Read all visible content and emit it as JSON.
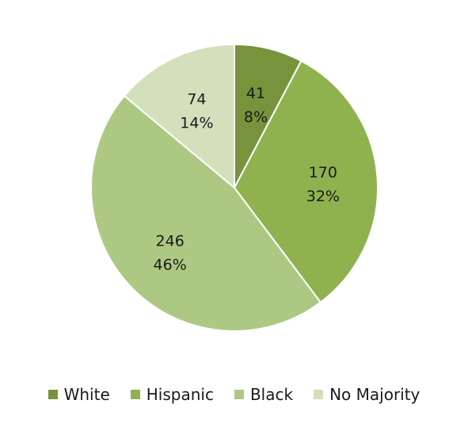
{
  "chart_data": {
    "type": "pie",
    "categories": [
      "White",
      "Hispanic",
      "Black",
      "No Majority"
    ],
    "values": [
      41,
      170,
      246,
      74
    ],
    "percent_labels": [
      "8%",
      "32%",
      "46%",
      "14%"
    ],
    "colors": [
      "#77933c",
      "#8fb24f",
      "#adc883",
      "#d3e0bc"
    ],
    "title": "",
    "legend_position": "bottom",
    "start_angle": "12 o'clock",
    "direction": "clockwise"
  }
}
